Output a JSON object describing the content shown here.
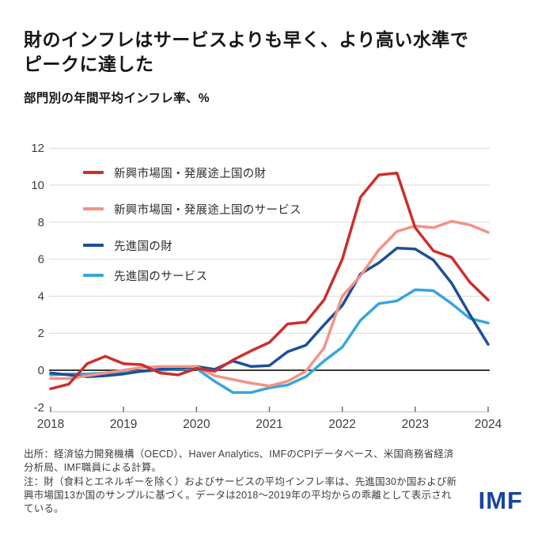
{
  "header": {
    "title": "財のインフレはサービスよりも早く、より高い水準で\nピークに達した",
    "subtitle": "部門別の年間平均インフレ率、%"
  },
  "chart_data": {
    "type": "line",
    "x": [
      2018.0,
      2018.25,
      2018.5,
      2018.75,
      2019.0,
      2019.25,
      2019.5,
      2019.75,
      2020.0,
      2020.25,
      2020.5,
      2020.75,
      2021.0,
      2021.25,
      2021.5,
      2021.75,
      2022.0,
      2022.25,
      2022.5,
      2022.75,
      2023.0,
      2023.25,
      2023.5,
      2023.75,
      2024.0
    ],
    "xlim": [
      2018,
      2024
    ],
    "ylim": [
      -2,
      12
    ],
    "y_ticks": [
      -2,
      0,
      2,
      4,
      6,
      8,
      10,
      12
    ],
    "x_tick_labels": [
      "2018",
      "2019",
      "2020",
      "2021",
      "2022",
      "2023",
      "2024"
    ],
    "baseline": 0,
    "grid": "horizontal",
    "legend_position": "top-left-inside",
    "series": [
      {
        "name": "新興市場国・発展途上国の財",
        "color": "#cc2f2c",
        "values": [
          -1.0,
          -0.75,
          0.35,
          0.75,
          0.35,
          0.3,
          -0.15,
          -0.25,
          0.1,
          -0.05,
          0.55,
          1.05,
          1.5,
          2.5,
          2.6,
          3.8,
          6.0,
          9.35,
          10.55,
          10.65,
          7.7,
          6.45,
          6.1,
          4.75,
          3.8
        ]
      },
      {
        "name": "新興市場国・発展途上国のサービス",
        "color": "#f29383",
        "values": [
          -0.45,
          -0.45,
          -0.3,
          -0.15,
          0.0,
          0.15,
          0.2,
          0.2,
          0.2,
          -0.3,
          -0.5,
          -0.7,
          -0.85,
          -0.6,
          -0.05,
          1.2,
          4.0,
          5.1,
          6.5,
          7.5,
          7.8,
          7.7,
          8.05,
          7.85,
          7.45
        ]
      },
      {
        "name": "先進国の財",
        "color": "#1d4f9a",
        "values": [
          -0.15,
          -0.25,
          -0.35,
          -0.3,
          -0.2,
          -0.05,
          0.05,
          0.1,
          0.2,
          0.05,
          0.5,
          0.2,
          0.25,
          1.0,
          1.35,
          2.45,
          3.5,
          5.2,
          5.8,
          6.6,
          6.55,
          5.95,
          4.7,
          3.0,
          1.4
        ]
      },
      {
        "name": "先進国のサービス",
        "color": "#39a5dc",
        "values": [
          -0.25,
          -0.2,
          -0.2,
          -0.15,
          -0.15,
          -0.05,
          0.0,
          0.05,
          0.1,
          -0.6,
          -1.2,
          -1.2,
          -0.95,
          -0.8,
          -0.35,
          0.5,
          1.25,
          2.7,
          3.6,
          3.75,
          4.35,
          4.3,
          3.6,
          2.8,
          2.55
        ]
      }
    ]
  },
  "footer": {
    "source": "出所：経済協力開発機構（OECD）、Haver Analytics、IMFのCPIデータベース、米国商務省経済分析局、IMF職員による計算。",
    "note": "注：財（食料とエネルギーを除く）およびサービスの平均インフレ率は、先進国30か国および新興市場国13か国のサンプルに基づく。データは2018〜2019年の平均からの乖離として表示されている。",
    "logo": "IMF"
  },
  "colors": {
    "grid_line": "#d9d9d9",
    "zero_line": "#3a3a3a",
    "axis_line": "#c9c9c9",
    "tick_mark": "#6b6b6b",
    "axis_label": "#3d3d3d",
    "logo_blue": "#17459e"
  }
}
